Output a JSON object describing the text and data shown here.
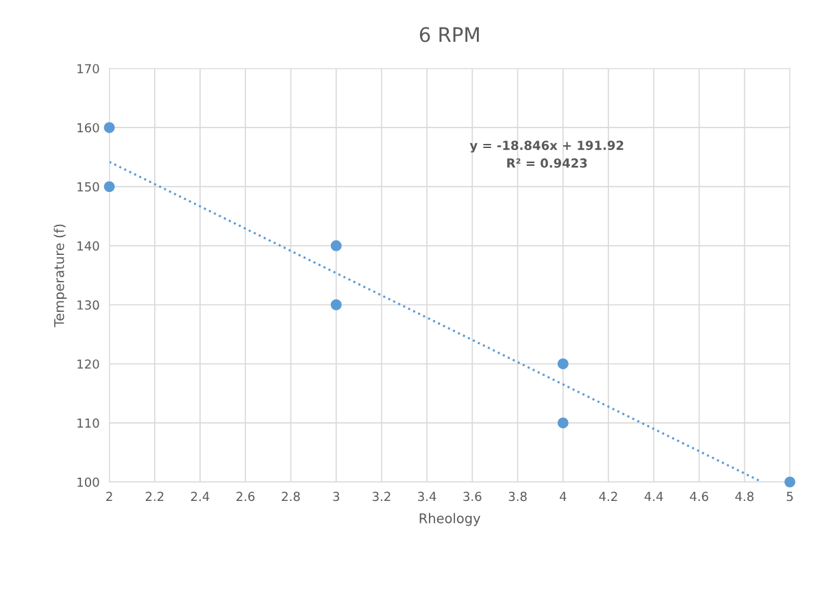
{
  "chart_data": {
    "type": "scatter",
    "title": "6 RPM",
    "xlabel": "Rheology",
    "ylabel": "Temperature (f)",
    "series": [
      {
        "color": "#5b9bd5",
        "x": [
          2,
          2,
          3,
          3,
          4,
          4,
          5
        ],
        "values": [
          160,
          150,
          140,
          130,
          120,
          110,
          100
        ],
        "marker": "circle"
      },
      {
        "type": "line",
        "color": "#5b9bd5",
        "x": [
          2,
          4.877
        ],
        "values": [
          154.2,
          100
        ],
        "line_style": "dotted",
        "marker": "none"
      }
    ],
    "annotations": [
      "y = -18.846x + 191.92\nR² = 0.9423"
    ],
    "xlim": [
      2,
      5
    ],
    "xticks": [
      2,
      2.2,
      2.4,
      2.6,
      2.8,
      3,
      3.2,
      3.4,
      3.6,
      3.8,
      4,
      4.2,
      4.4,
      4.6,
      4.8,
      5
    ],
    "ylim": [
      100,
      170
    ],
    "yticks": [
      100,
      110,
      120,
      130,
      140,
      150,
      160,
      170
    ],
    "grid": true,
    "legend": false
  }
}
